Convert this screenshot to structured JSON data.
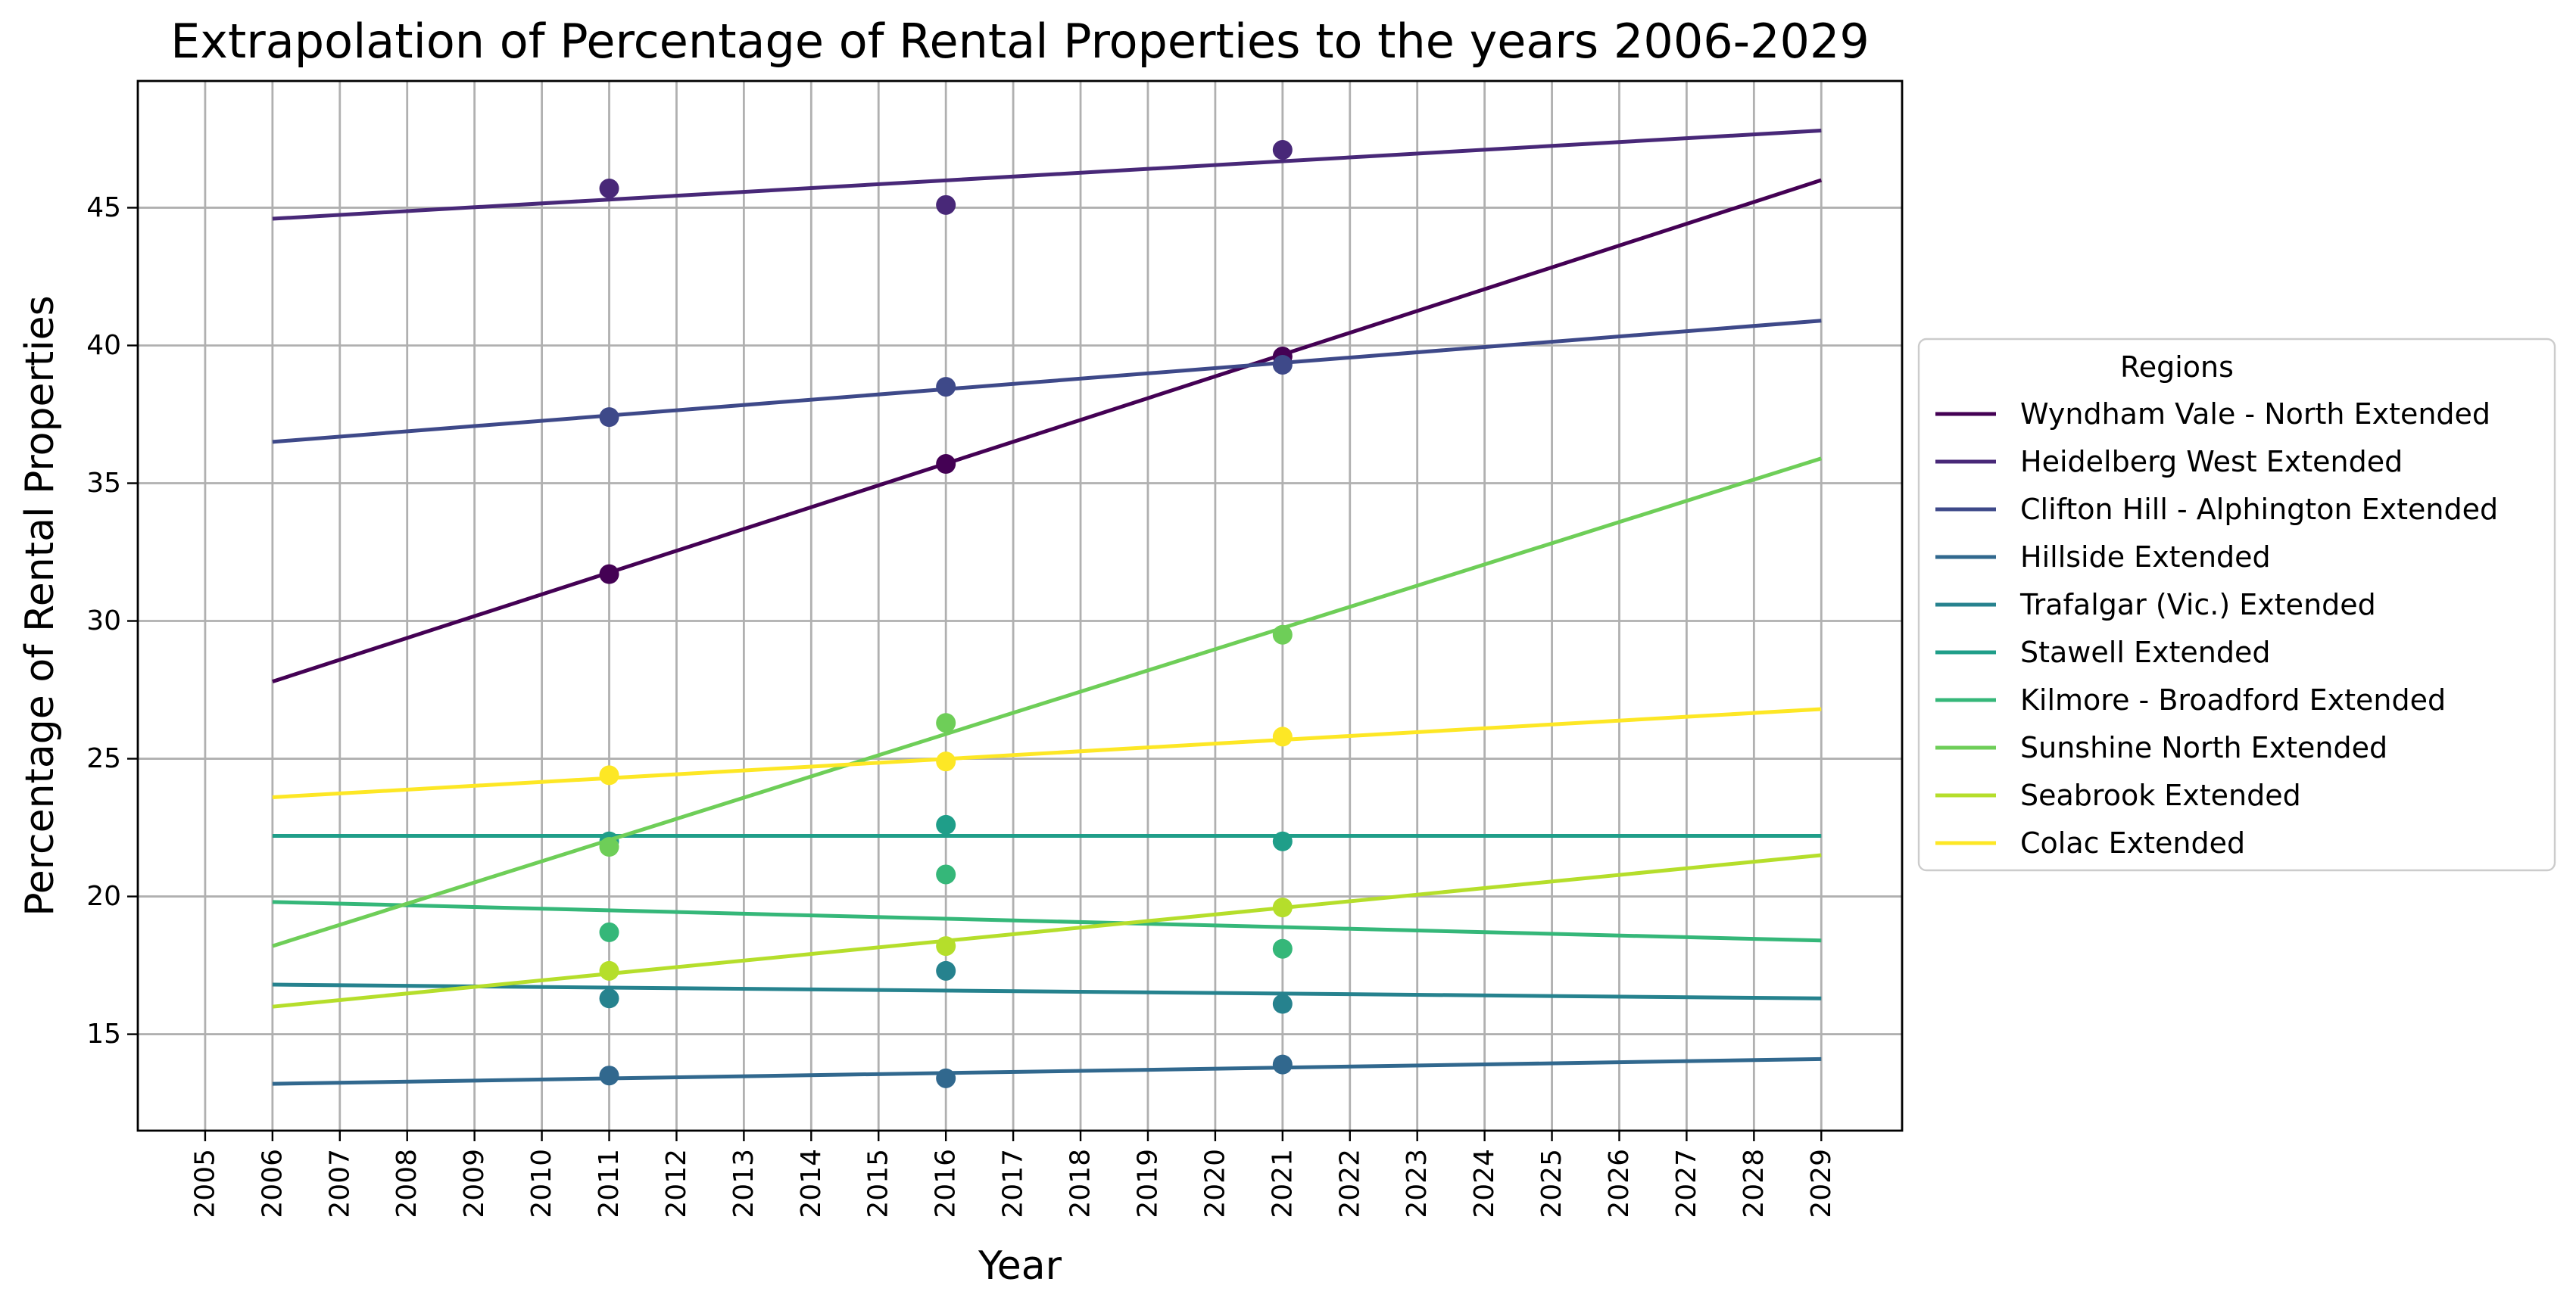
{
  "chart_data": {
    "type": "line",
    "title": "Extrapolation of Percentage of Rental Properties to the years 2006-2029",
    "xlabel": "Year",
    "ylabel": "Percentage of Rental Properties",
    "xlim": [
      2004.0,
      2030.2
    ],
    "ylim": [
      11.5,
      49.6
    ],
    "x_ticks": [
      2005,
      2006,
      2007,
      2008,
      2009,
      2010,
      2011,
      2012,
      2013,
      2014,
      2015,
      2016,
      2017,
      2018,
      2019,
      2020,
      2021,
      2022,
      2023,
      2024,
      2025,
      2026,
      2027,
      2028,
      2029
    ],
    "y_ticks": [
      15,
      20,
      25,
      30,
      35,
      40,
      45
    ],
    "grid": true,
    "legend": {
      "title": "Regions",
      "placement": "outside-right"
    },
    "series": [
      {
        "name": "Wyndham Vale - North Extended",
        "color": "#440154",
        "line": [
          [
            2006,
            27.8
          ],
          [
            2029,
            46.0
          ]
        ],
        "points": [
          [
            2011,
            31.7
          ],
          [
            2016,
            35.7
          ],
          [
            2021,
            39.6
          ]
        ]
      },
      {
        "name": "Heidelberg West Extended",
        "color": "#482878",
        "line": [
          [
            2006,
            44.6
          ],
          [
            2029,
            47.8
          ]
        ],
        "points": [
          [
            2011,
            45.7
          ],
          [
            2016,
            45.1
          ],
          [
            2021,
            47.1
          ]
        ]
      },
      {
        "name": "Clifton Hill - Alphington Extended",
        "color": "#3e4989",
        "line": [
          [
            2006,
            36.5
          ],
          [
            2029,
            40.9
          ]
        ],
        "points": [
          [
            2011,
            37.4
          ],
          [
            2016,
            38.5
          ],
          [
            2021,
            39.3
          ]
        ]
      },
      {
        "name": "Hillside Extended",
        "color": "#31688e",
        "line": [
          [
            2006,
            13.2
          ],
          [
            2029,
            14.1
          ]
        ],
        "points": [
          [
            2011,
            13.5
          ],
          [
            2016,
            13.4
          ],
          [
            2021,
            13.9
          ]
        ]
      },
      {
        "name": "Trafalgar (Vic.) Extended",
        "color": "#26828e",
        "line": [
          [
            2006,
            16.8
          ],
          [
            2029,
            16.3
          ]
        ],
        "points": [
          [
            2011,
            16.3
          ],
          [
            2016,
            17.3
          ],
          [
            2021,
            16.1
          ]
        ]
      },
      {
        "name": "Stawell Extended",
        "color": "#1f9e89",
        "line": [
          [
            2006,
            22.2
          ],
          [
            2029,
            22.2
          ]
        ],
        "points": [
          [
            2011,
            22.0
          ],
          [
            2016,
            22.6
          ],
          [
            2021,
            22.0
          ]
        ]
      },
      {
        "name": "Kilmore - Broadford Extended",
        "color": "#35b779",
        "line": [
          [
            2006,
            19.8
          ],
          [
            2029,
            18.4
          ]
        ],
        "points": [
          [
            2011,
            18.7
          ],
          [
            2016,
            20.8
          ],
          [
            2021,
            18.1
          ]
        ]
      },
      {
        "name": "Sunshine North Extended",
        "color": "#6ece58",
        "line": [
          [
            2006,
            18.2
          ],
          [
            2029,
            35.9
          ]
        ],
        "points": [
          [
            2011,
            21.8
          ],
          [
            2016,
            26.3
          ],
          [
            2021,
            29.5
          ]
        ]
      },
      {
        "name": "Seabrook Extended",
        "color": "#b5de2b",
        "line": [
          [
            2006,
            16.0
          ],
          [
            2029,
            21.5
          ]
        ],
        "points": [
          [
            2011,
            17.3
          ],
          [
            2016,
            18.2
          ],
          [
            2021,
            19.6
          ]
        ]
      },
      {
        "name": "Colac Extended",
        "color": "#fde725",
        "line": [
          [
            2006,
            23.6
          ],
          [
            2029,
            26.8
          ]
        ],
        "points": [
          [
            2011,
            24.4
          ],
          [
            2016,
            24.9
          ],
          [
            2021,
            25.8
          ]
        ]
      }
    ]
  }
}
